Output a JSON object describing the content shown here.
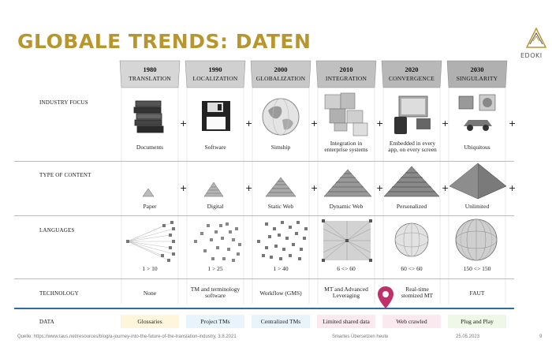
{
  "slide": {
    "title": "GLOBALE TRENDS: DATEN",
    "logo_text": "EDOKI",
    "footer_source": "Quelle: https://www.taus.net/resources/blog/a-journey-into-the-future-of-the-translation-industry, 3.8.2021",
    "footer_center": "Smartes Übersetzen heute",
    "footer_date": "25.05.2023",
    "page_number": "9"
  },
  "columns": [
    {
      "year": "1980",
      "name": "TRANSLATION"
    },
    {
      "year": "1990",
      "name": "LOCALIZATION"
    },
    {
      "year": "2000",
      "name": "GLOBALIZATION"
    },
    {
      "year": "2010",
      "name": "INTEGRATION"
    },
    {
      "year": "2020",
      "name": "CONVERGENCE"
    },
    {
      "year": "2030",
      "name": "SINGULARITY"
    }
  ],
  "rows": {
    "industry_focus": {
      "label": "INDUSTRY FOCUS",
      "items": [
        "Documents",
        "Software",
        "Simship",
        "Integration in\nenterprise systems",
        "Embedded in every\napp, on every screen",
        "Ubiquitous"
      ]
    },
    "type_of_content": {
      "label": "TYPE OF CONTENT",
      "items": [
        "Paper",
        "Digital",
        "Static Web",
        "Dynamic Web",
        "Personalized",
        "Unlimited"
      ]
    },
    "languages": {
      "label": "LANGUAGES",
      "items": [
        "1 > 10",
        "1 > 25",
        "1 > 40",
        "6 <> 60",
        "60 <> 60",
        "150 <> 150"
      ]
    },
    "technology": {
      "label": "TECHNOLOGY",
      "items": [
        "None",
        "TM and terminology\nsoftware",
        "Workflow (GMS)",
        "MT and Advanced\nLeveraging",
        "Real-time\nstomized MT",
        "FAUT"
      ]
    },
    "data": {
      "label": "DATA",
      "items": [
        "Glossaries",
        "Project TMs",
        "Centralized TMs",
        "Limited shared data",
        "Web crawled",
        "Plug and Play"
      ]
    }
  },
  "plus_sign": "+",
  "colors": {
    "title": "#b8962e",
    "divider": "#2e6da4",
    "pin": "#c0306a",
    "data_cell_bg": [
      "#fdf6dc",
      "#e9f3fb",
      "#e9f3fb",
      "#fbe9f0",
      "#fbe9f0",
      "#eef7e8"
    ]
  },
  "icons": [
    "books-icon",
    "floppy-disk-icon",
    "globe-icon",
    "puzzle-icon",
    "devices-icon",
    "appliances-icon"
  ]
}
